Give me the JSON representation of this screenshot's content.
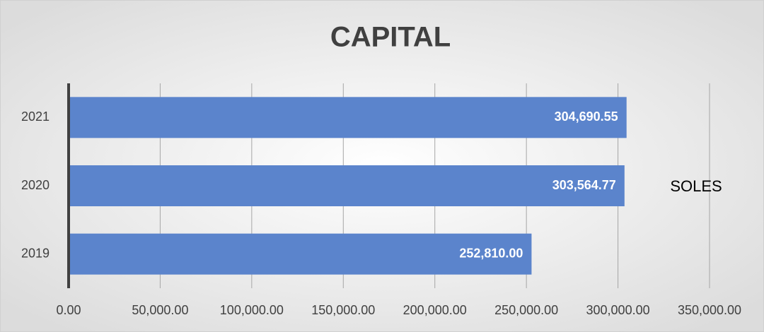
{
  "chart_data": {
    "type": "bar",
    "orientation": "horizontal",
    "title": "CAPITAL",
    "categories": [
      "2021",
      "2020",
      "2019"
    ],
    "series": [
      {
        "name": "SOLES",
        "color": "#5b84cc",
        "values": [
          304690.55,
          303564.77,
          252810.0
        ],
        "value_labels": [
          "304,690.55",
          "303,564.77",
          "252,810.00"
        ]
      }
    ],
    "xlim": [
      0,
      350000
    ],
    "xticks": [
      {
        "value": 0,
        "label": "0.00"
      },
      {
        "value": 50000,
        "label": "50,000.00"
      },
      {
        "value": 100000,
        "label": "100,000.00"
      },
      {
        "value": 150000,
        "label": "150,000.00"
      },
      {
        "value": 200000,
        "label": "200,000.00"
      },
      {
        "value": 250000,
        "label": "250,000.00"
      },
      {
        "value": 300000,
        "label": "300,000.00"
      },
      {
        "value": 350000,
        "label": "350,000.00"
      }
    ],
    "grid": true,
    "legend": "right"
  }
}
